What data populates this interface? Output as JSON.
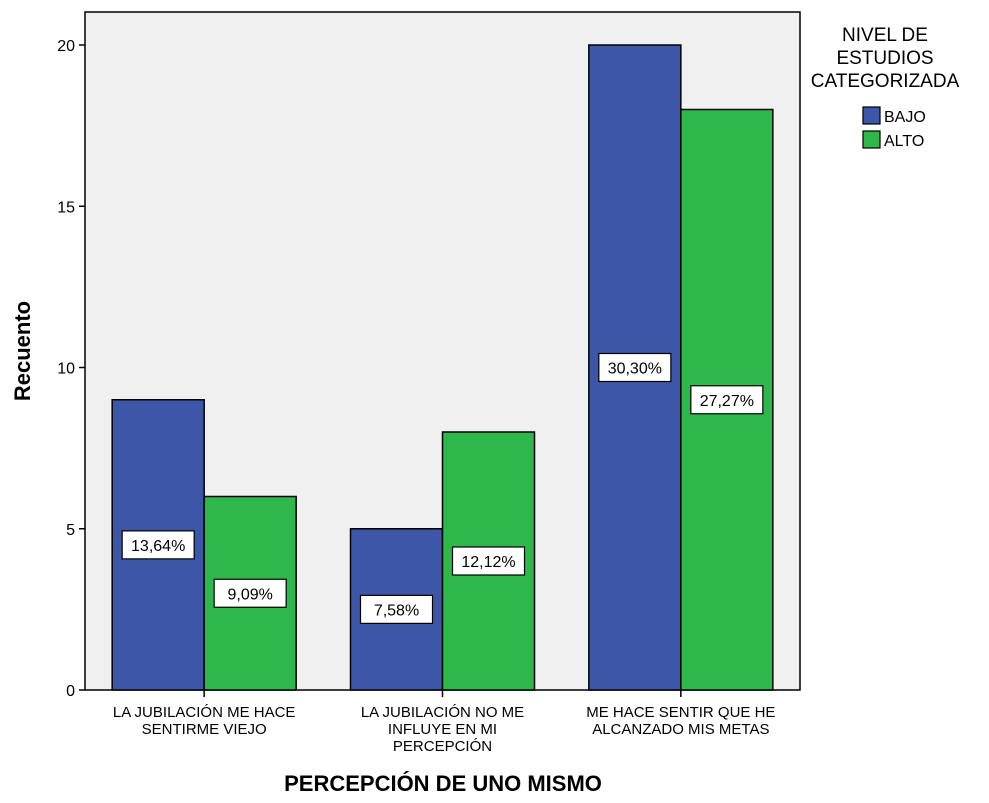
{
  "chart_data": {
    "type": "bar",
    "xlabel": "PERCEPCIÓN DE UNO MISMO",
    "ylabel": "Recuento",
    "ylim": [
      0,
      20
    ],
    "yticks": [
      0,
      5,
      10,
      15,
      20
    ],
    "categories": [
      [
        "LA JUBILACIÓN ME HACE",
        "SENTIRME VIEJO"
      ],
      [
        "LA JUBILACIÓN NO ME",
        "INFLUYE EN MI",
        "PERCEPCIÓN"
      ],
      [
        "ME HACE SENTIR QUE HE",
        "ALCANZADO MIS METAS"
      ]
    ],
    "series": [
      {
        "name": "BAJO",
        "color": "#3d56a8",
        "values": [
          9,
          5,
          20
        ],
        "labels": [
          "13,64%",
          "7,58%",
          "30,30%"
        ]
      },
      {
        "name": "ALTO",
        "color": "#2eb74a",
        "values": [
          6,
          8,
          18
        ],
        "labels": [
          "9,09%",
          "12,12%",
          "27,27%"
        ]
      }
    ],
    "legend": {
      "title_lines": [
        "NIVEL DE",
        "ESTUDIOS",
        "CATEGORIZADA"
      ],
      "position": "top-right"
    },
    "background": "#f0f0f0",
    "grid": false
  }
}
